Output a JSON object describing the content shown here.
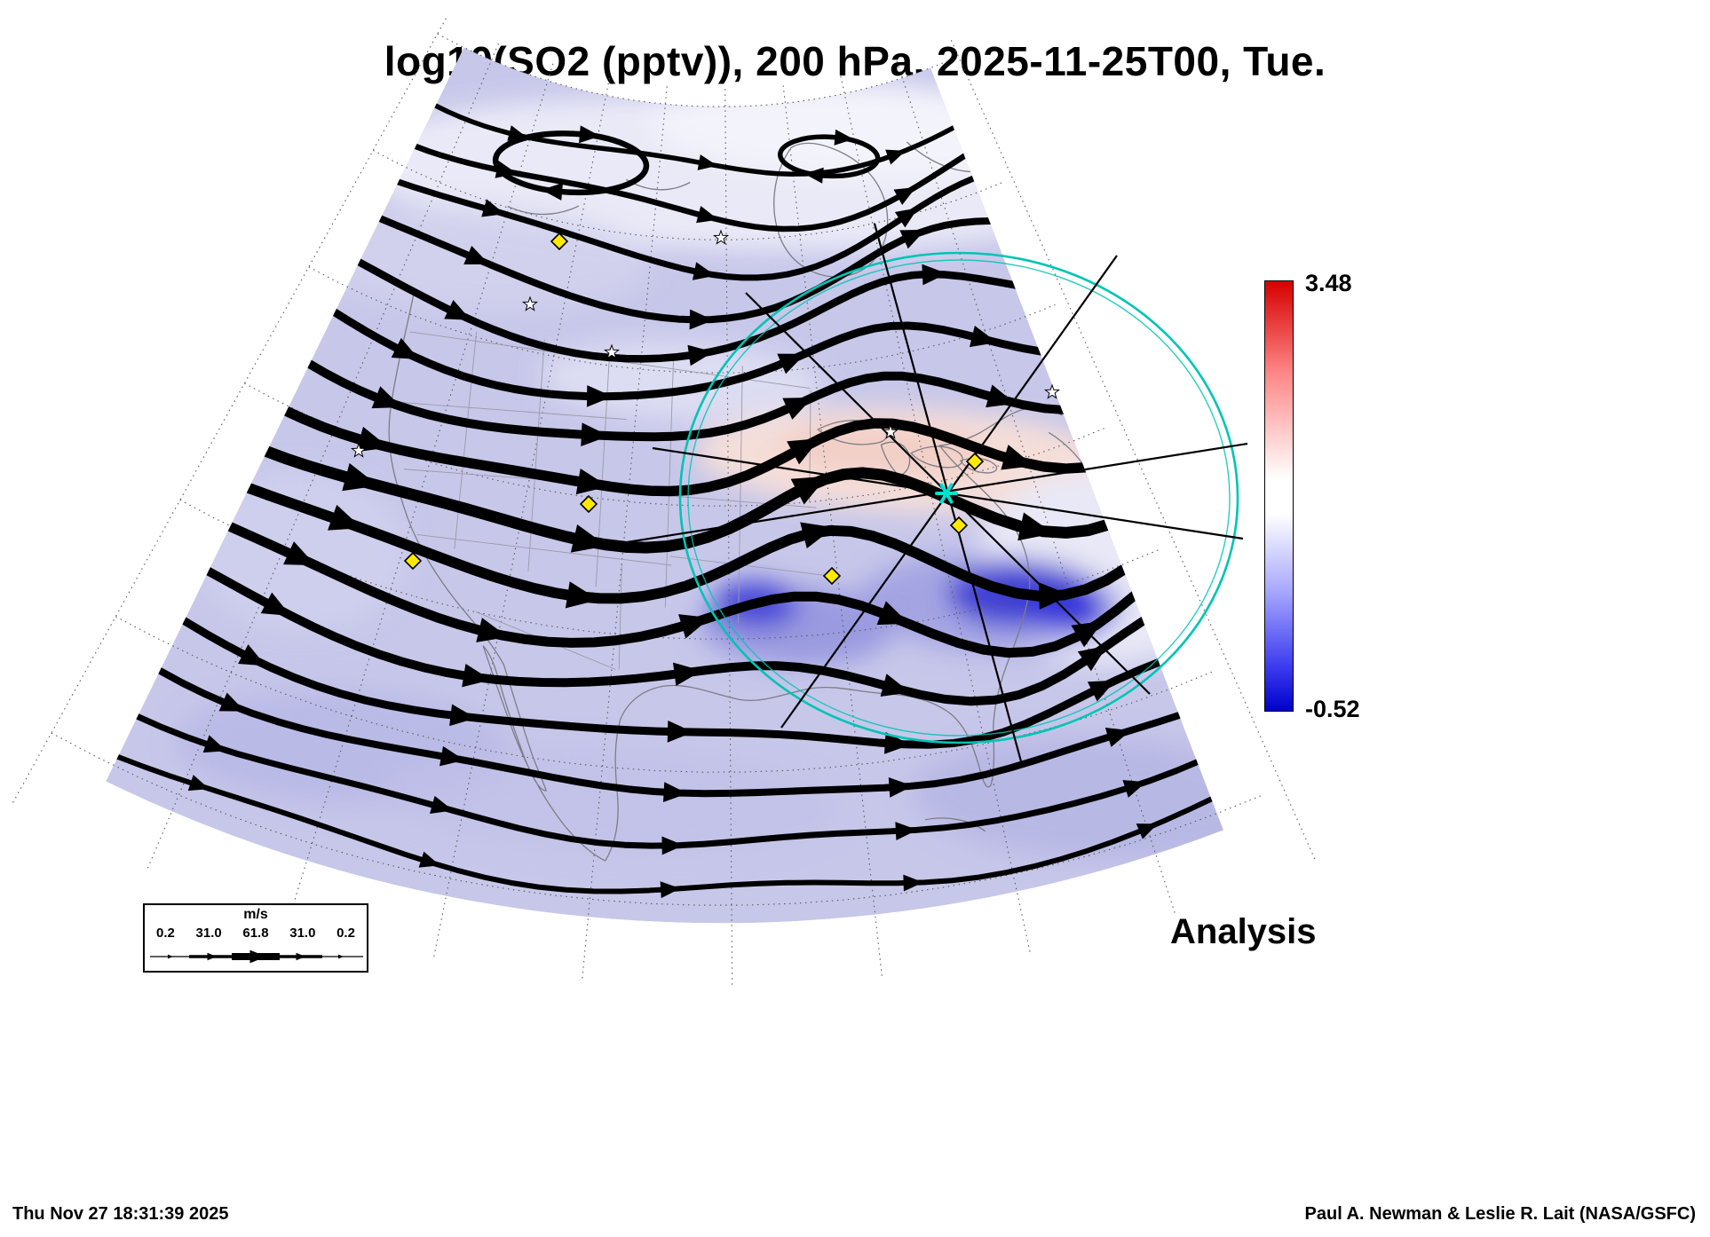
{
  "title": "log10(SO2 (pptv)), 200 hPa, 2025-11-25T00, Tue.",
  "colorbar": {
    "max_label": "3.48",
    "min_label": "-0.52",
    "top_color": "#d60000",
    "mid_color": "#ffffff",
    "bottom_color": "#0000cc"
  },
  "wind_legend": {
    "unit": "m/s",
    "tick_labels": [
      "0.2",
      "31.0",
      "61.8",
      "31.0",
      "0.2"
    ]
  },
  "analysis_label": "Analysis",
  "footer": {
    "generated": "Thu Nov 27 18:31:39 2025",
    "credit": "Paul A. Newman & Leslie R. Lait (NASA/GSFC)"
  },
  "chart_data": {
    "type": "heatmap",
    "title": "log10(SO2 (pptv)), 200 hPa, 2025-11-25T00, Tue.",
    "quantity": "log10(SO2 (pptv))",
    "pressure_level": "200 hPa",
    "valid_time": "2025-11-25T00",
    "weekday": "Tue.",
    "product": "Analysis",
    "colorbar": {
      "min": -0.52,
      "max": 3.48,
      "orientation": "vertical",
      "colors_top_to_bottom": [
        "red",
        "white",
        "blue"
      ]
    },
    "overlays": {
      "wind_streamlines": {
        "color": "black",
        "unit": "m/s",
        "speed_scale_ms": [
          0.2,
          31.0,
          61.8,
          31.0,
          0.2
        ]
      },
      "range_ring": {
        "color": "cyan",
        "count": 1
      },
      "straight_track_lines": {
        "color": "black",
        "count": 5
      },
      "diamond_markers": {
        "color": "yellow",
        "count": 6
      },
      "star_markers": {
        "color": "white",
        "count": 6
      },
      "center_star": {
        "color": "cyan",
        "count": 1
      }
    },
    "region": "North America, polar stereographic projection wedge with dotted lat/lon graticule",
    "field_character": "mostly light blue-violet field (values below mid-scale), pale pink band over the Great Lakes / Northeast, deep blue minima over the southeastern U.S., white outside the data wedge"
  }
}
